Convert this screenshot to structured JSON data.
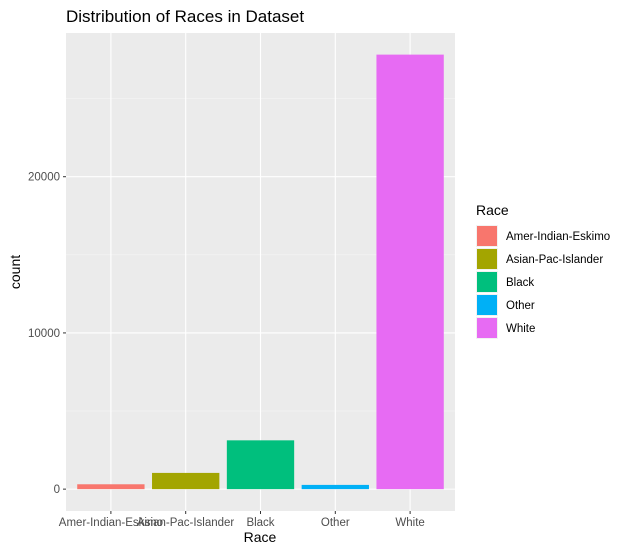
{
  "chart_data": {
    "type": "bar",
    "title": "Distribution of Races in Dataset",
    "xlabel": "Race",
    "ylabel": "count",
    "categories": [
      "Amer-Indian-Eskimo",
      "Asian-Pac-Islander",
      "Black",
      "Other",
      "White"
    ],
    "values": [
      311,
      1039,
      3124,
      271,
      27816
    ],
    "colors": [
      "#F8766D",
      "#A3A500",
      "#00BF7D",
      "#00B0F6",
      "#E76BF3"
    ],
    "yticks": [
      0,
      10000,
      20000
    ],
    "ytick_labels": [
      "0",
      "10000",
      "20000"
    ],
    "ylim": [
      -1400,
      29200
    ],
    "grid": true,
    "legend": {
      "title": "Race",
      "position": "right",
      "items": [
        "Amer-Indian-Eskimo",
        "Asian-Pac-Islander",
        "Black",
        "Other",
        "White"
      ]
    }
  }
}
